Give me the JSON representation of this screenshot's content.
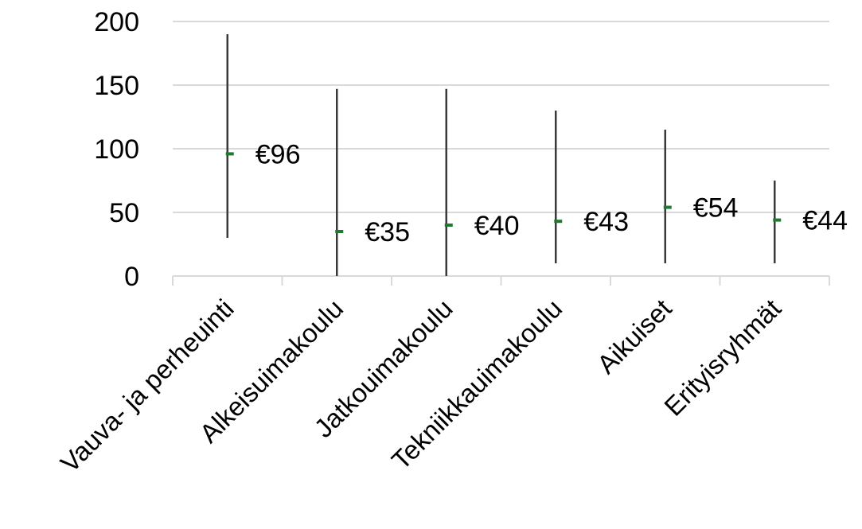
{
  "chart_data": {
    "type": "high-low-average",
    "categories": [
      "Vauva- ja perheuinti",
      "Alkeisuimakoulu",
      "Jatkouimakoulu",
      "Tekniikkauimakoulu",
      "Aikuiset",
      "Erityisryhmät"
    ],
    "series": [
      {
        "values": [
          96,
          35,
          40,
          43,
          54,
          44
        ]
      },
      {
        "values": [
          190,
          147,
          147,
          130,
          115,
          75
        ]
      },
      {
        "values": [
          30,
          0,
          0,
          10,
          10,
          10
        ]
      }
    ],
    "data_labels": [
      "€96",
      "€35",
      "€40",
      "€43",
      "€54",
      "€44"
    ],
    "ylim": [
      0,
      200
    ],
    "yticks": [
      0,
      50,
      100,
      150,
      200
    ],
    "grid": true,
    "colors": {
      "range_line": "#3a3a3a",
      "marker": "#1e7a2e",
      "grid": "#d9d9d9",
      "axis": "#d9d9d9"
    }
  }
}
